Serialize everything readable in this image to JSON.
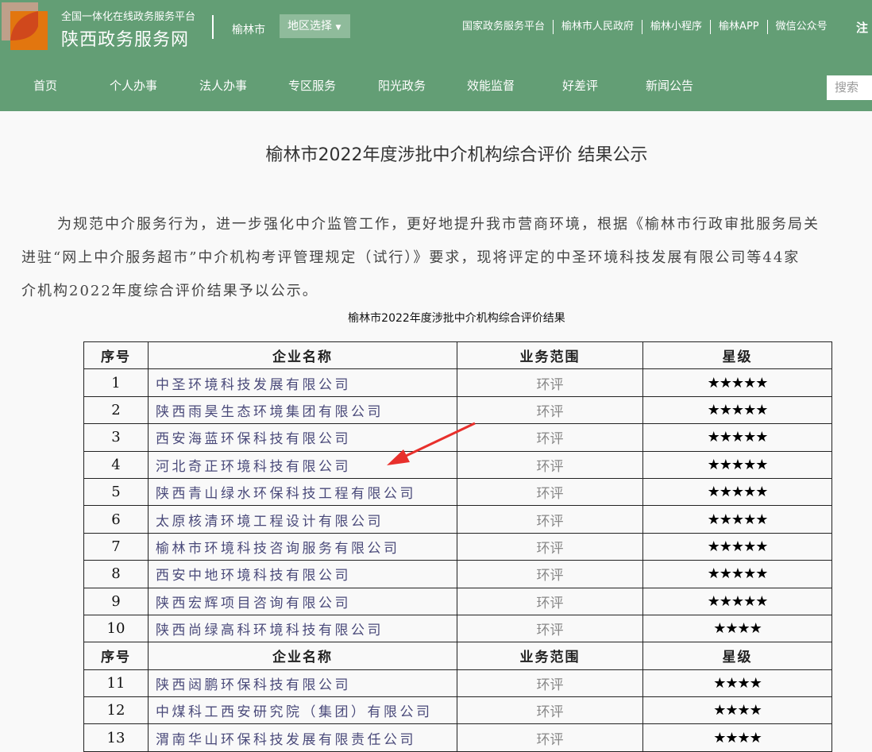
{
  "header": {
    "platform": "全国一体化在线政务服务平台",
    "site_name": "陕西政务服务网",
    "city": "榆林市",
    "region_select": "地区选择",
    "top_links": [
      "国家政务服务平台",
      "榆林市人民政府",
      "榆林小程序",
      "榆林APP",
      "微信公众号"
    ],
    "register": "注",
    "nav": [
      "首页",
      "个人办事",
      "法人办事",
      "专区服务",
      "阳光政务",
      "效能监督",
      "好差评",
      "新闻公告"
    ],
    "search_placeholder": "搜索"
  },
  "article": {
    "title": "榆林市2022年度涉批中介机构综合评价 结果公示",
    "lines": [
      "为规范中介服务行为，进一步强化中介监管工作，更好地提升我市营商环境，根据《榆林市行政审批服务局关",
      "进驻“网上中介服务超市”中介机构考评管理规定（试行）》要求，现将评定的中圣环境科技发展有限公司等44家",
      "介机构2022年度综合评价结果予以公示。"
    ],
    "table_caption": "榆林市2022年度涉批中介机构综合评价结果",
    "columns": [
      "序号",
      "企业名称",
      "业务范围",
      "星级"
    ],
    "rows": [
      {
        "no": "1",
        "name": "中圣环境科技发展有限公司",
        "scope": "环评",
        "stars": "★★★★★"
      },
      {
        "no": "2",
        "name": "陕西雨昊生态环境集团有限公司",
        "scope": "环评",
        "stars": "★★★★★"
      },
      {
        "no": "3",
        "name": "西安海蓝环保科技有限公司",
        "scope": "环评",
        "stars": "★★★★★"
      },
      {
        "no": "4",
        "name": "河北奇正环境科技有限公司",
        "scope": "环评",
        "stars": "★★★★★"
      },
      {
        "no": "5",
        "name": "陕西青山绿水环保科技工程有限公司",
        "scope": "环评",
        "stars": "★★★★★"
      },
      {
        "no": "6",
        "name": "太原核清环境工程设计有限公司",
        "scope": "环评",
        "stars": "★★★★★"
      },
      {
        "no": "7",
        "name": "榆林市环境科技咨询服务有限公司",
        "scope": "环评",
        "stars": "★★★★★"
      },
      {
        "no": "8",
        "name": "西安中地环境科技有限公司",
        "scope": "环评",
        "stars": "★★★★★"
      },
      {
        "no": "9",
        "name": "陕西宏辉项目咨询有限公司",
        "scope": "环评",
        "stars": "★★★★★"
      },
      {
        "no": "10",
        "name": "陕西尚绿高科环境科技有限公司",
        "scope": "环评",
        "stars": "★★★★"
      },
      {
        "header": true
      },
      {
        "no": "11",
        "name": "陕西闼鹏环保科技有限公司",
        "scope": "环评",
        "stars": "★★★★"
      },
      {
        "no": "12",
        "name": "中煤科工西安研究院（集团）有限公司",
        "scope": "环评",
        "stars": "★★★★"
      },
      {
        "no": "13",
        "name": "渭南华山环保科技发展有限责任公司",
        "scope": "环评",
        "stars": "★★★★"
      }
    ]
  },
  "colors": {
    "header_bg": "#639e75",
    "arrow": "#e8302c"
  }
}
